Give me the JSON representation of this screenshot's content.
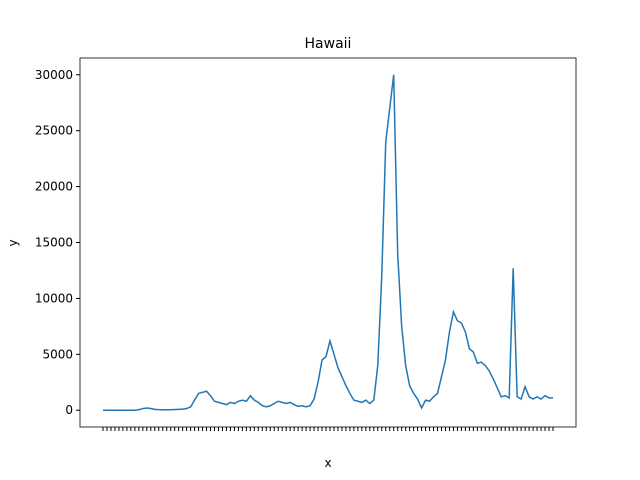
{
  "chart_data": {
    "type": "line",
    "title": "Hawaii",
    "xlabel": "x",
    "ylabel": "y",
    "series": [
      {
        "name": "Hawaii",
        "color": "#1f77b4",
        "values": [
          0,
          0,
          0,
          0,
          0,
          0,
          0,
          0,
          0,
          50,
          150,
          200,
          150,
          80,
          50,
          40,
          40,
          40,
          60,
          80,
          100,
          150,
          300,
          900,
          1500,
          1600,
          1700,
          1300,
          800,
          700,
          600,
          500,
          700,
          600,
          800,
          900,
          800,
          1300,
          900,
          700,
          400,
          300,
          400,
          600,
          800,
          700,
          600,
          700,
          500,
          350,
          400,
          300,
          400,
          1000,
          2500,
          4500,
          4800,
          6200,
          5000,
          3800,
          3000,
          2200,
          1500,
          900,
          800,
          700,
          900,
          600,
          900,
          4000,
          12000,
          24000,
          27000,
          30000,
          14000,
          7500,
          4000,
          2200,
          1500,
          1000,
          200,
          900,
          800,
          1200,
          1500,
          3000,
          4500,
          7000,
          8800,
          8000,
          7800,
          7000,
          5500,
          5200,
          4200,
          4300,
          4000,
          3500,
          2800,
          2000,
          1200,
          1300,
          1100,
          12700,
          1200,
          1000,
          2100,
          1200,
          1000,
          1200,
          1000,
          1300,
          1100,
          1100
        ]
      }
    ],
    "categories": [
      null,
      null,
      null,
      null,
      null,
      null,
      null,
      null,
      null,
      null,
      null,
      null,
      null,
      null,
      null,
      null,
      null,
      null,
      null,
      null,
      null,
      null,
      null,
      null,
      null,
      null,
      null,
      null,
      null,
      null,
      null,
      null,
      null,
      null,
      null,
      null,
      null,
      null,
      null,
      null,
      null,
      null,
      null,
      null,
      null,
      null,
      null,
      null,
      null,
      null,
      null,
      null,
      null,
      null,
      null,
      null,
      null,
      null,
      null,
      null,
      null,
      null,
      null,
      null,
      null,
      null,
      null,
      null,
      null,
      null,
      null,
      null,
      null,
      null,
      null,
      null,
      null,
      null,
      null,
      null,
      null,
      null,
      null,
      null,
      null,
      null,
      null,
      null,
      null,
      null,
      null,
      null,
      null,
      null,
      null,
      null,
      null,
      null,
      null,
      null,
      null,
      null,
      null,
      null,
      null,
      null,
      null,
      null,
      null,
      null,
      null,
      null,
      null,
      null
    ],
    "ylim": [
      -1500,
      31500
    ],
    "yticks": [
      0,
      5000,
      10000,
      15000,
      20000,
      25000,
      30000
    ]
  }
}
